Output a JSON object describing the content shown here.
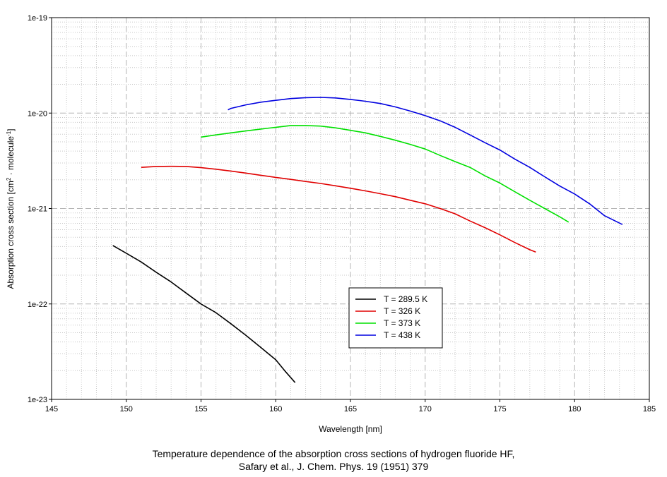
{
  "chart_data": {
    "type": "line",
    "xlabel": "Wavelength [nm]",
    "ylabel": {
      "prefix": "Absorption cross section [cm",
      "sup1": "2",
      "middle": " · molecule",
      "sup2": "-1",
      "suffix": "]"
    },
    "xlim": [
      145,
      185
    ],
    "ylim": [
      1e-23,
      1e-19
    ],
    "yscale": "log",
    "grid": true,
    "legend_position": "center-bottom",
    "x_tick_labels": [
      "145",
      "150",
      "155",
      "160",
      "165",
      "170",
      "175",
      "180",
      "185"
    ],
    "y_tick_labels": [
      "1e-23",
      "1e-22",
      "1e-21",
      "1e-20",
      "1e-19"
    ],
    "caption_lines": [
      "Temperature dependence of the absorption cross sections of hydrogen fluoride HF,",
      "Safary et al., J. Chem. Phys. 19 (1951) 379"
    ],
    "series": [
      {
        "name": "T = 289.5 K",
        "color": "#000000",
        "x": [
          149.1,
          150,
          151,
          152,
          153,
          154,
          155,
          156,
          157,
          158,
          159,
          160,
          160.6,
          161.3
        ],
        "y": [
          4.1e-22,
          3.4e-22,
          2.75e-22,
          2.15e-22,
          1.7e-22,
          1.3e-22,
          1e-22,
          8.1e-23,
          6.2e-23,
          4.7e-23,
          3.5e-23,
          2.6e-23,
          2e-23,
          1.5e-23
        ]
      },
      {
        "name": "T = 326 K",
        "color": "#e00000",
        "x": [
          151,
          152,
          153,
          154,
          155,
          156,
          157,
          158,
          159,
          160,
          161,
          162,
          163,
          164,
          165,
          166,
          167,
          168,
          169,
          170,
          171,
          172,
          173,
          174,
          175,
          176,
          177,
          177.4
        ],
        "y": [
          2.7e-21,
          2.76e-21,
          2.77e-21,
          2.76e-21,
          2.68e-21,
          2.58e-21,
          2.47e-21,
          2.35e-21,
          2.23e-21,
          2.12e-21,
          2.02e-21,
          1.92e-21,
          1.83e-21,
          1.73e-21,
          1.63e-21,
          1.53e-21,
          1.43e-21,
          1.33e-21,
          1.22e-21,
          1.12e-21,
          1e-21,
          8.8e-22,
          7.4e-22,
          6.3e-22,
          5.3e-22,
          4.4e-22,
          3.7e-22,
          3.5e-22
        ]
      },
      {
        "name": "T = 373 K",
        "color": "#00e000",
        "x": [
          155,
          156,
          157,
          158,
          159,
          160,
          161,
          162,
          163,
          164,
          165,
          166,
          167,
          168,
          169,
          170,
          171,
          172,
          173,
          174,
          175,
          176,
          177,
          178,
          179,
          179.6
        ],
        "y": [
          5.6e-21,
          5.9e-21,
          6.2e-21,
          6.5e-21,
          6.8e-21,
          7.1e-21,
          7.4e-21,
          7.4e-21,
          7.3e-21,
          7e-21,
          6.6e-21,
          6.2e-21,
          5.7e-21,
          5.2e-21,
          4.7e-21,
          4.2e-21,
          3.6e-21,
          3.1e-21,
          2.7e-21,
          2.2e-21,
          1.85e-21,
          1.5e-21,
          1.22e-21,
          1e-21,
          8.2e-22,
          7.2e-22
        ]
      },
      {
        "name": "T = 438 K",
        "color": "#0000e0",
        "x": [
          156.8,
          157,
          158,
          159,
          160,
          161,
          162,
          163,
          164,
          165,
          166,
          167,
          168,
          169,
          170,
          171,
          172,
          173,
          174,
          175,
          176,
          177,
          178,
          179,
          180,
          181,
          182,
          183.2
        ],
        "y": [
          1.08e-20,
          1.12e-20,
          1.22e-20,
          1.3e-20,
          1.36e-20,
          1.42e-20,
          1.45e-20,
          1.46e-20,
          1.44e-20,
          1.39e-20,
          1.33e-20,
          1.26e-20,
          1.16e-20,
          1.05e-20,
          9.4e-21,
          8.3e-21,
          7.1e-21,
          5.9e-21,
          4.9e-21,
          4.1e-21,
          3.3e-21,
          2.7e-21,
          2.15e-21,
          1.72e-21,
          1.42e-21,
          1.12e-21,
          8.4e-22,
          6.8e-22
        ]
      }
    ]
  }
}
